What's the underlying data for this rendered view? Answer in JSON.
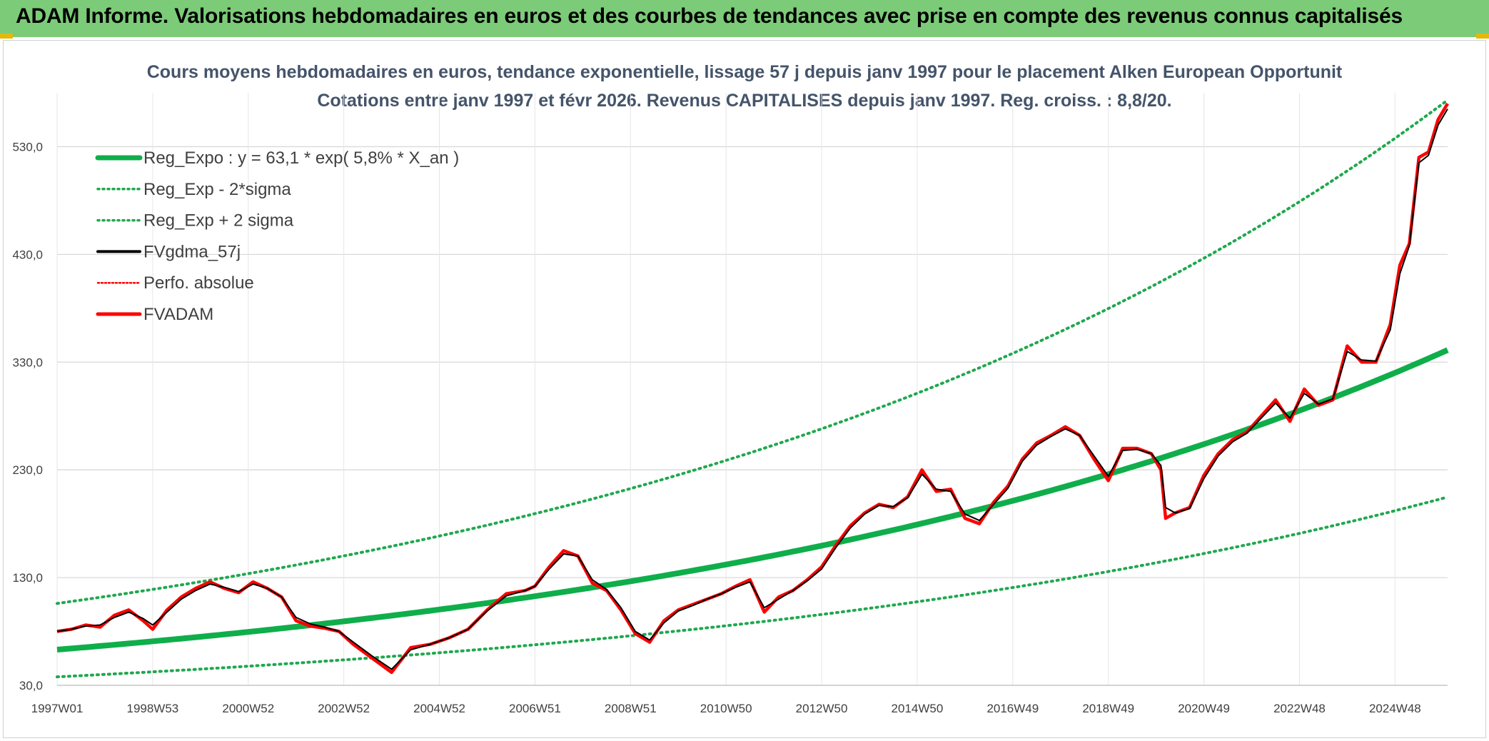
{
  "header": {
    "title": "ADAM Informe. Valorisations hebdomadaires en euros et des courbes de tendances avec prise en compte des revenus connus capitalisés"
  },
  "colors": {
    "header_bg": "#7ccb78",
    "trend": "#0fae4b",
    "band": "#1fa84e",
    "smooth": "#000000",
    "price": "#ff0000",
    "perf": "#ff0000"
  },
  "chart_data": {
    "type": "line",
    "title": [
      "Cours moyens hebdomadaires en euros, tendance exponentielle, lissage 57 j depuis janv 1997 pour le placement Alken European Opportunit",
      "Cotations entre janv 1997 et févr 2026. Revenus CAPITALISES depuis janv 1997. Reg. croiss. : 8,8/20."
    ],
    "xlabel": "",
    "ylabel": "",
    "x_ticks": [
      "1997W01",
      "1998W53",
      "2000W52",
      "2002W52",
      "2004W52",
      "2006W51",
      "2008W51",
      "2010W50",
      "2012W50",
      "2014W50",
      "2016W49",
      "2018W49",
      "2020W49",
      "2022W48",
      "2024W48"
    ],
    "x_range": [
      1997.0,
      2026.1
    ],
    "ylim": [
      30,
      580
    ],
    "y_ticks": [
      "30,0",
      "130,0",
      "230,0",
      "330,0",
      "430,0",
      "530,0"
    ],
    "grid": true,
    "legend_position": "top-left",
    "legend": [
      {
        "label": "Reg_Expo : y = 63,1 * exp( 5,8% *  X_an )",
        "style": "trend"
      },
      {
        "label": "Reg_Exp - 2*sigma",
        "style": "band"
      },
      {
        "label": "Reg_Exp + 2 sigma",
        "style": "band"
      },
      {
        "label": "FVgdma_57j",
        "style": "smooth"
      },
      {
        "label": "Perfo. absolue",
        "style": "perf"
      },
      {
        "label": "FVADAM",
        "style": "price"
      }
    ],
    "trend": {
      "a": 63.1,
      "rate": 0.058,
      "x0": 1997.0
    },
    "band_factors": {
      "lower": 0.6,
      "upper": 1.68
    },
    "series": [
      {
        "name": "FVADAM",
        "x": [
          1997.0,
          1997.3,
          1997.6,
          1997.9,
          1998.2,
          1998.5,
          1998.8,
          1999.0,
          1999.3,
          1999.6,
          1999.9,
          2000.2,
          2000.5,
          2000.8,
          2001.1,
          2001.4,
          2001.7,
          2002.0,
          2002.3,
          2002.6,
          2002.9,
          2003.2,
          2003.6,
          2004.0,
          2004.4,
          2004.8,
          2005.2,
          2005.6,
          2006.0,
          2006.4,
          2006.8,
          2007.0,
          2007.3,
          2007.6,
          2007.9,
          2008.2,
          2008.5,
          2008.8,
          2009.1,
          2009.4,
          2009.7,
          2010.0,
          2010.3,
          2010.6,
          2010.9,
          2011.2,
          2011.5,
          2011.8,
          2012.1,
          2012.4,
          2012.7,
          2013.0,
          2013.3,
          2013.6,
          2013.9,
          2014.2,
          2014.5,
          2014.8,
          2015.1,
          2015.4,
          2015.7,
          2016.0,
          2016.3,
          2016.6,
          2016.9,
          2017.2,
          2017.5,
          2017.8,
          2018.1,
          2018.4,
          2018.7,
          2019.0,
          2019.3,
          2019.6,
          2019.9,
          2020.1,
          2020.2,
          2020.4,
          2020.7,
          2021.0,
          2021.3,
          2021.6,
          2021.9,
          2022.2,
          2022.5,
          2022.8,
          2023.1,
          2023.4,
          2023.7,
          2024.0,
          2024.3,
          2024.6,
          2024.9,
          2025.1,
          2025.3,
          2025.5,
          2025.7,
          2025.9,
          2026.1
        ],
        "y": [
          80,
          82,
          86,
          84,
          95,
          100,
          90,
          82,
          100,
          112,
          120,
          126,
          120,
          116,
          126,
          120,
          112,
          90,
          85,
          83,
          80,
          68,
          55,
          42,
          65,
          68,
          74,
          82,
          100,
          115,
          118,
          122,
          140,
          155,
          150,
          125,
          118,
          100,
          78,
          70,
          90,
          100,
          105,
          110,
          115,
          122,
          128,
          98,
          112,
          118,
          128,
          140,
          160,
          178,
          190,
          198,
          195,
          205,
          230,
          210,
          212,
          185,
          180,
          200,
          215,
          240,
          255,
          262,
          270,
          262,
          240,
          220,
          250,
          250,
          245,
          230,
          185,
          190,
          195,
          225,
          245,
          258,
          265,
          280,
          295,
          275,
          305,
          290,
          295,
          345,
          330,
          330,
          365,
          420,
          440,
          520,
          525,
          555,
          570
        ]
      },
      {
        "name": "FVgdma_57j",
        "x": [
          1997.0,
          1997.3,
          1997.6,
          1997.9,
          1998.2,
          1998.5,
          1998.8,
          1999.0,
          1999.3,
          1999.6,
          1999.9,
          2000.2,
          2000.5,
          2000.8,
          2001.1,
          2001.4,
          2001.7,
          2002.0,
          2002.3,
          2002.6,
          2002.9,
          2003.2,
          2003.6,
          2004.0,
          2004.4,
          2004.8,
          2005.2,
          2005.6,
          2006.0,
          2006.4,
          2006.8,
          2007.0,
          2007.3,
          2007.6,
          2007.9,
          2008.2,
          2008.5,
          2008.8,
          2009.1,
          2009.4,
          2009.7,
          2010.0,
          2010.3,
          2010.6,
          2010.9,
          2011.2,
          2011.5,
          2011.8,
          2012.1,
          2012.4,
          2012.7,
          2013.0,
          2013.3,
          2013.6,
          2013.9,
          2014.2,
          2014.5,
          2014.8,
          2015.1,
          2015.4,
          2015.7,
          2016.0,
          2016.3,
          2016.6,
          2016.9,
          2017.2,
          2017.5,
          2017.8,
          2018.1,
          2018.4,
          2018.7,
          2019.0,
          2019.3,
          2019.6,
          2019.9,
          2020.1,
          2020.2,
          2020.4,
          2020.7,
          2021.0,
          2021.3,
          2021.6,
          2021.9,
          2022.2,
          2022.5,
          2022.8,
          2023.1,
          2023.4,
          2023.7,
          2024.0,
          2024.3,
          2024.6,
          2024.9,
          2025.1,
          2025.3,
          2025.5,
          2025.7,
          2025.9,
          2026.1
        ],
        "y": [
          80,
          82,
          85,
          86,
          93,
          98,
          92,
          86,
          98,
          110,
          118,
          124,
          121,
          117,
          124,
          120,
          112,
          93,
          87,
          84,
          80,
          70,
          57,
          45,
          63,
          68,
          74,
          82,
          99,
          113,
          118,
          122,
          138,
          152,
          150,
          128,
          119,
          102,
          80,
          72,
          88,
          99,
          104,
          110,
          115,
          121,
          126,
          102,
          110,
          118,
          127,
          138,
          158,
          176,
          189,
          197,
          196,
          204,
          226,
          212,
          210,
          189,
          183,
          198,
          213,
          238,
          253,
          261,
          268,
          262,
          243,
          224,
          248,
          249,
          245,
          234,
          195,
          190,
          194,
          222,
          243,
          256,
          264,
          278,
          292,
          278,
          301,
          291,
          296,
          340,
          332,
          331,
          360,
          412,
          438,
          515,
          522,
          550,
          565
        ]
      }
    ]
  }
}
